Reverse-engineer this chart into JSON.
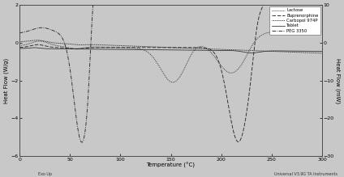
{
  "xlabel": "Temperature (°C)",
  "ylabel_left": "Heat Flow (W/g)",
  "ylabel_right": "Heat Flow (mW)",
  "xlim": [
    0,
    300
  ],
  "ylim_left": [
    -6,
    2
  ],
  "ylim_right": [
    -30,
    10
  ],
  "xticks": [
    0,
    50,
    100,
    150,
    200,
    250,
    300
  ],
  "yticks_left": [
    -6,
    -4,
    -2,
    0,
    2
  ],
  "yticks_right": [
    -30,
    -20,
    -10,
    0,
    10
  ],
  "footer_left": "Exo Up",
  "footer_right": "Universal V3.9G TA Instruments",
  "legend_entries": [
    "Lactose",
    "Buprenorphine",
    "Carbopol 974P",
    "Tablet",
    "PEG 3350"
  ],
  "bg_color": "#c8c8c8",
  "line_color": "#2a2a2a"
}
